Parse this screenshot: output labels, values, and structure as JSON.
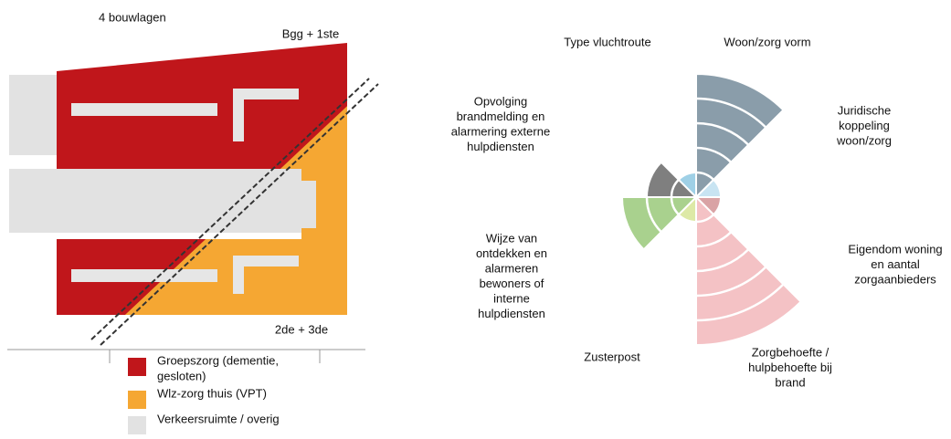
{
  "left": {
    "title": "4 bouwlagen",
    "top_label": "Bgg + 1ste",
    "bottom_label": "2de + 3de",
    "legend": [
      {
        "lines": [
          "Groepszorg (dementie,",
          "gesloten)"
        ],
        "color": "#c0161b"
      },
      {
        "lines": [
          "Wlz-zorg thuis (VPT)"
        ],
        "color": "#f5a733"
      },
      {
        "lines": [
          "Verkeersruimte / overig"
        ],
        "color": "#e2e2e2"
      }
    ]
  },
  "rose": {
    "sectors": [
      {
        "lines": [
          "Woon/zorg vorm"
        ],
        "value": 5,
        "color": "#8a9daa"
      },
      {
        "lines": [
          "Juridische",
          "koppeling",
          "woon/zorg"
        ],
        "value": 1,
        "color": "#c8e4f2"
      },
      {
        "lines": [
          "Eigendom woning",
          "en aantal",
          "zorgaanbieders"
        ],
        "value": 1,
        "color": "#d9a3a5"
      },
      {
        "lines": [
          "Zorgbehoefte /",
          "hulpbehoefte bij",
          "brand"
        ],
        "value": 6,
        "color": "#f4c2c5"
      },
      {
        "lines": [
          "Zusterpost"
        ],
        "value": 1,
        "color": "#dde9a6"
      },
      {
        "lines": [
          "Wijze van",
          "ontdekken en",
          "alarmeren",
          "bewoners of",
          "interne",
          "hulpdiensten"
        ],
        "value": 3,
        "color": "#a9d18e"
      },
      {
        "lines": [
          "Opvolging",
          "brandmelding en",
          "alarmering externe",
          "hulpdiensten"
        ],
        "value": 2,
        "color": "#7f7f7f"
      },
      {
        "lines": [
          "Type vluchtroute"
        ],
        "value": 1,
        "color": "#9fd0e6"
      }
    ]
  }
}
